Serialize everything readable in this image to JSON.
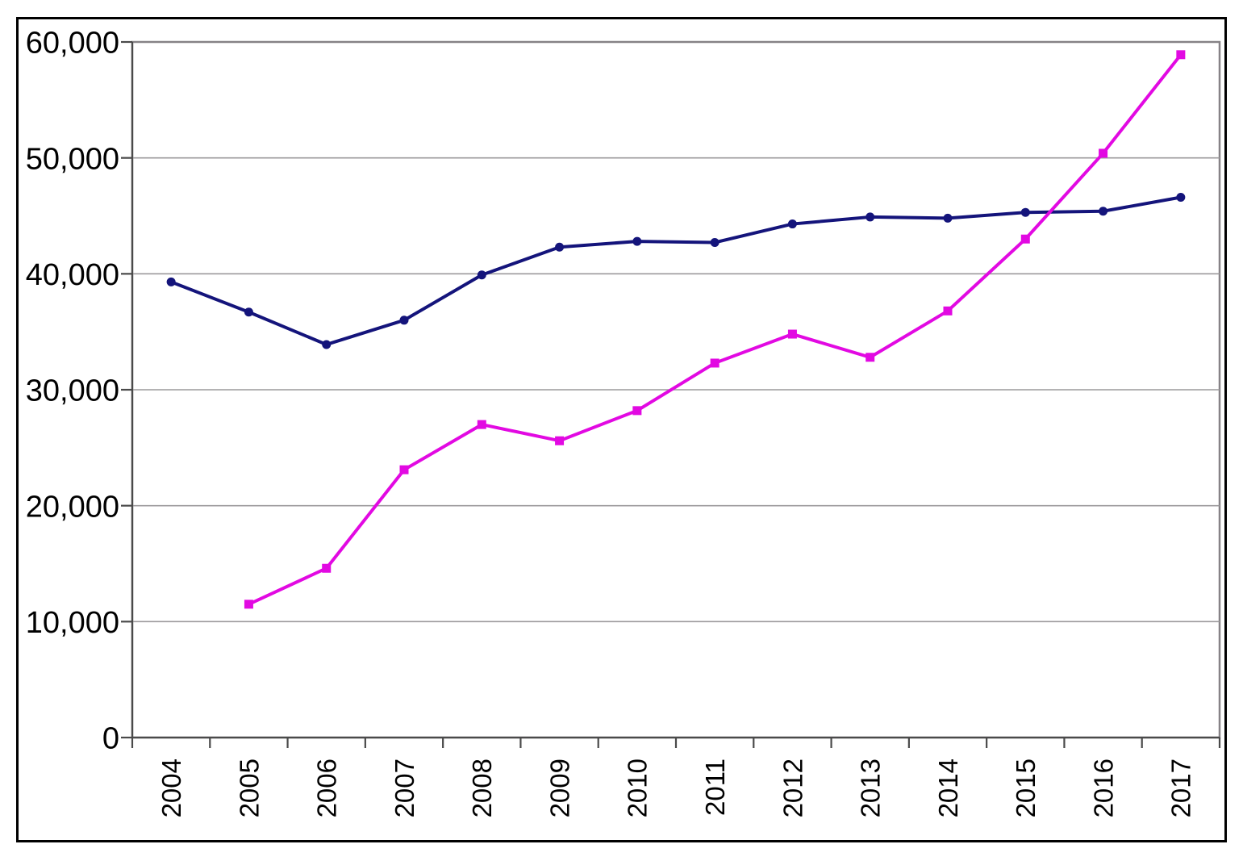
{
  "page": {
    "background_color": "#FFFFFF",
    "outer_border_color": "#000000"
  },
  "chart_data": {
    "type": "line",
    "title": "",
    "xlabel": "",
    "ylabel": "",
    "grid": true,
    "legend_position": "none",
    "plot_border_color": "#868286",
    "gridline_color": "#9C9A9C",
    "axis_line_color": "#4A4A4A",
    "categories": [
      "2004",
      "2005",
      "2006",
      "2007",
      "2008",
      "2009",
      "2010",
      "2011",
      "2012",
      "2013",
      "2014",
      "2015",
      "2016",
      "2017"
    ],
    "y_axis": {
      "min": 0,
      "max": 60000,
      "step": 10000,
      "tick_labels": [
        "0",
        "10,000",
        "20,000",
        "30,000",
        "40,000",
        "50,000",
        "60,000"
      ]
    },
    "series": [
      {
        "name": "navy-line-circle-markers",
        "color": "#14147B",
        "marker": "circle",
        "values": [
          39300,
          36700,
          33900,
          36000,
          39900,
          42300,
          42800,
          42700,
          44300,
          44900,
          44800,
          45300,
          45400,
          46600
        ]
      },
      {
        "name": "magenta-line-square-markers",
        "color": "#E209E2",
        "marker": "square",
        "values": [
          null,
          11500,
          14600,
          23100,
          27000,
          25600,
          28200,
          32300,
          34800,
          32800,
          36800,
          43000,
          50400,
          58900
        ]
      }
    ]
  }
}
